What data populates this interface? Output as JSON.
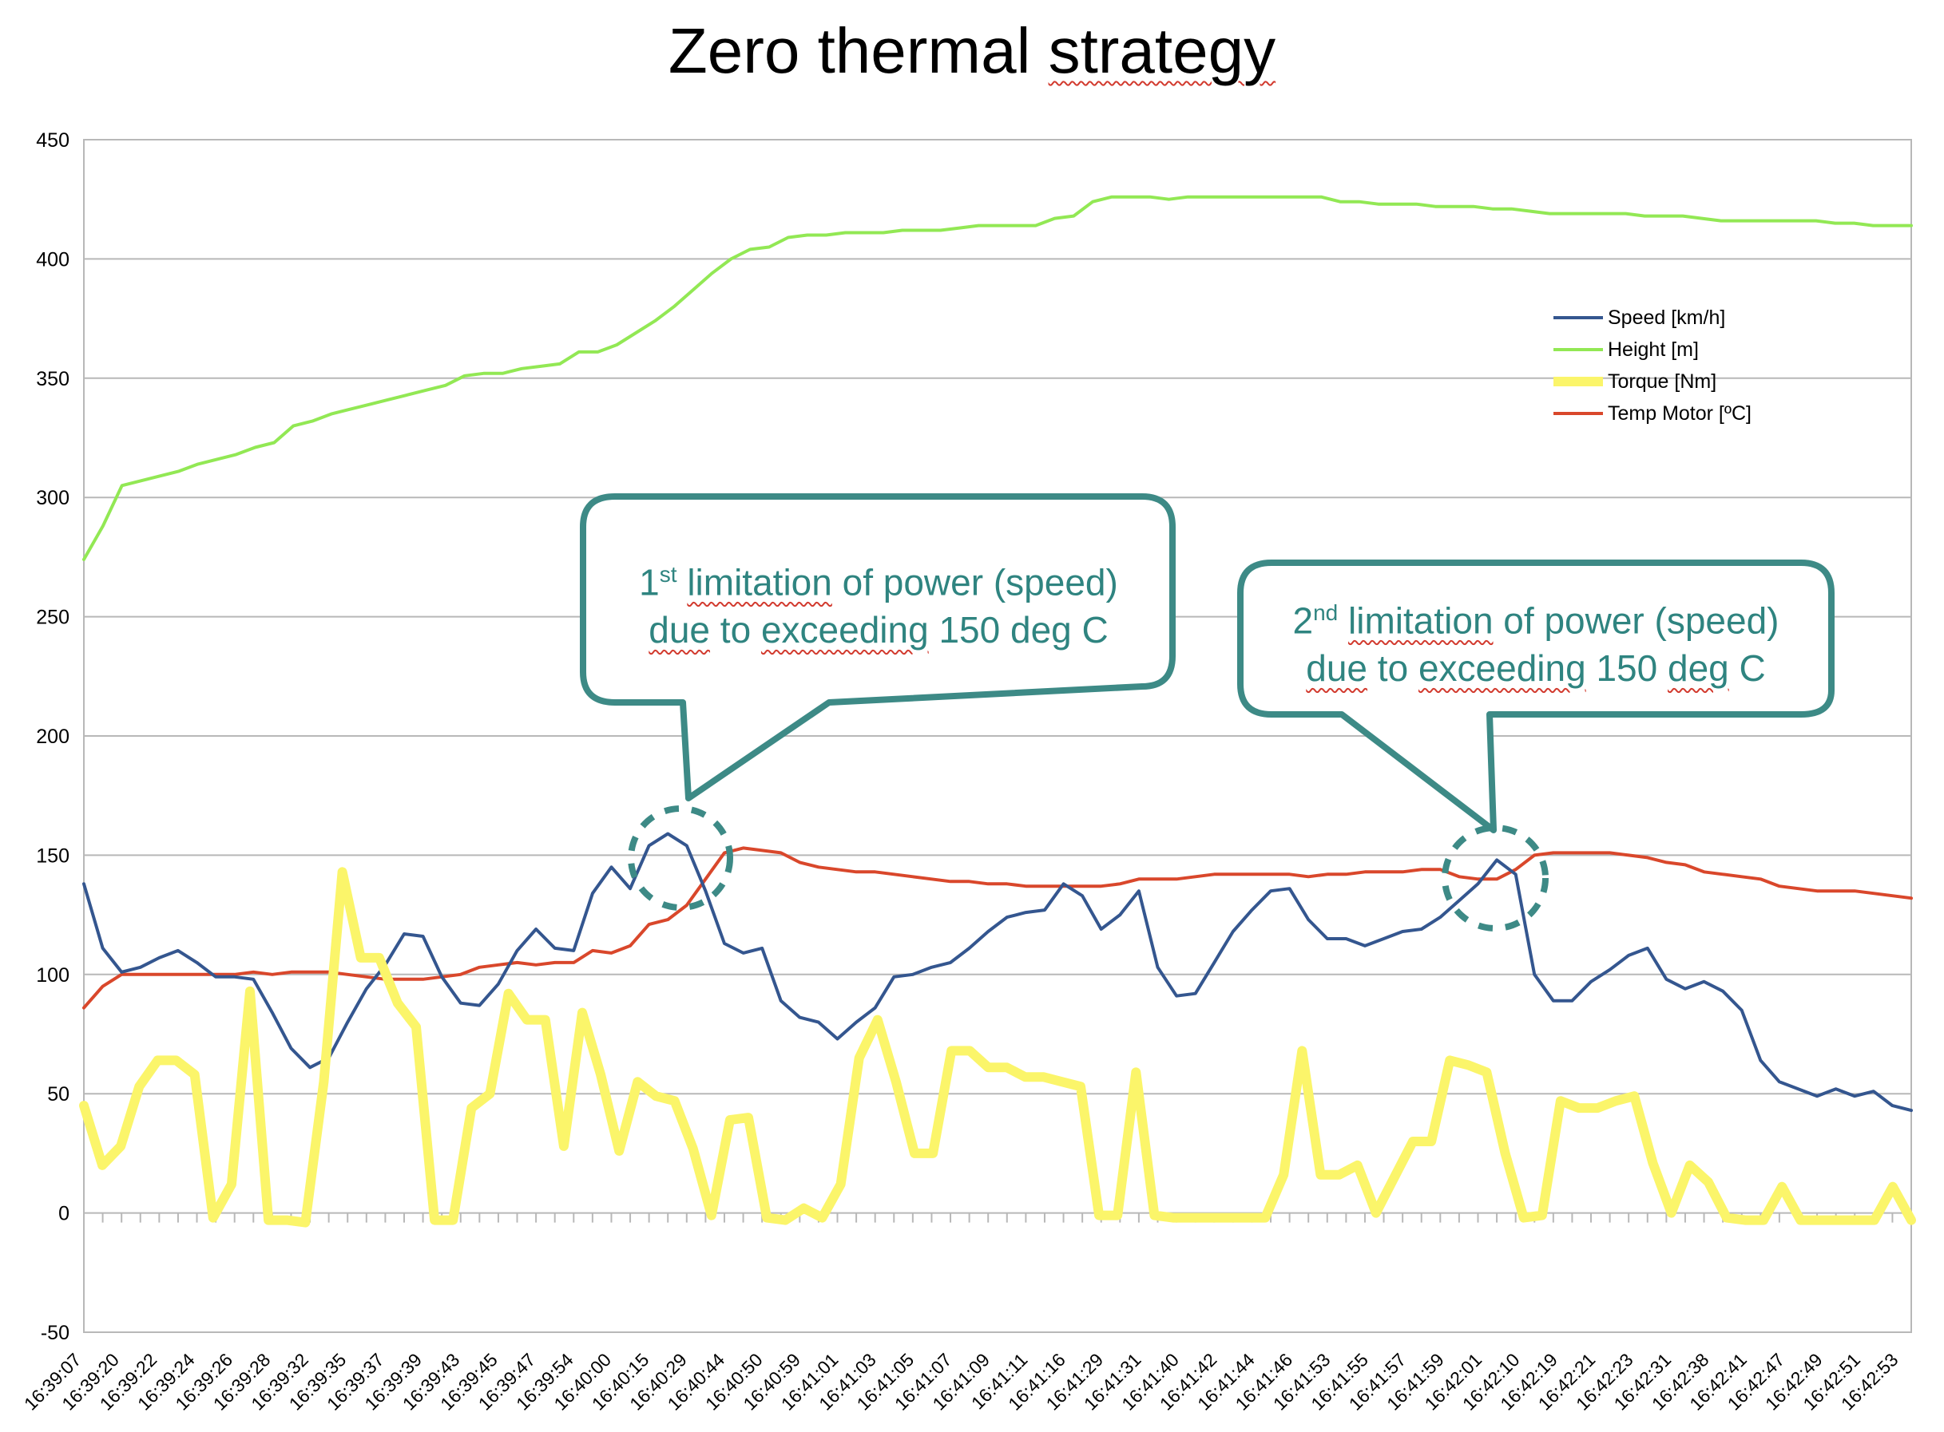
{
  "title_parts": [
    "Zero thermal ",
    "strategy"
  ],
  "chart_data": {
    "type": "line",
    "title": "Zero thermal strategy",
    "ylim": [
      -50,
      450
    ],
    "yticks": [
      -50,
      0,
      50,
      100,
      150,
      200,
      250,
      300,
      350,
      400,
      450
    ],
    "grid": true,
    "legend_position": "top-right",
    "x_tick_labels": [
      "16:39:07",
      "16:39:20",
      "16:39:22",
      "16:39:24",
      "16:39:26",
      "16:39:28",
      "16:39:32",
      "16:39:35",
      "16:39:37",
      "16:39:39",
      "16:39:43",
      "16:39:45",
      "16:39:47",
      "16:39:54",
      "16:40:00",
      "16:40:15",
      "16:40:29",
      "16:40:44",
      "16:40:50",
      "16:40:59",
      "16:41:01",
      "16:41:03",
      "16:41:05",
      "16:41:07",
      "16:41:09",
      "16:41:11",
      "16:41:16",
      "16:41:29",
      "16:41:31",
      "16:41:40",
      "16:41:42",
      "16:41:44",
      "16:41:46",
      "16:41:53",
      "16:41:55",
      "16:41:57",
      "16:41:59",
      "16:42:01",
      "16:42:10",
      "16:42:19",
      "16:42:21",
      "16:42:23",
      "16:42:31",
      "16:42:38",
      "16:42:41",
      "16:42:47",
      "16:42:49",
      "16:42:51",
      "16:42:53"
    ],
    "series": [
      {
        "name": "Speed [km/h]",
        "color": "#34568f",
        "width": 4,
        "values": [
          138,
          111,
          101,
          103,
          107,
          110,
          105,
          99,
          99,
          98,
          84,
          69,
          61,
          65,
          80,
          94,
          104,
          117,
          116,
          99,
          88,
          87,
          96,
          110,
          119,
          111,
          110,
          134,
          145,
          136,
          154,
          159,
          154,
          135,
          113,
          109,
          111,
          89,
          82,
          80,
          73,
          80,
          86,
          99,
          100,
          103,
          105,
          111,
          118,
          124,
          126,
          127,
          138,
          133,
          119,
          125,
          135,
          103,
          91,
          92,
          105,
          118,
          127,
          135,
          136,
          123,
          115,
          115,
          112,
          115,
          118,
          119,
          124,
          131,
          138,
          148,
          142,
          100,
          89,
          89,
          97,
          102,
          108,
          111,
          98,
          94,
          97,
          93,
          85,
          64,
          55,
          52,
          49,
          52,
          49,
          51,
          45,
          43
        ]
      },
      {
        "name": "Height  [m]",
        "color": "#92e854",
        "width": 4,
        "values": [
          274,
          288,
          305,
          307,
          309,
          311,
          314,
          316,
          318,
          321,
          323,
          330,
          332,
          335,
          337,
          339,
          341,
          343,
          345,
          347,
          351,
          352,
          352,
          354,
          355,
          356,
          361,
          361,
          364,
          369,
          374,
          380,
          387,
          394,
          400,
          404,
          405,
          409,
          410,
          410,
          411,
          411,
          411,
          412,
          412,
          412,
          413,
          414,
          414,
          414,
          414,
          417,
          418,
          424,
          426,
          426,
          426,
          425,
          426,
          426,
          426,
          426,
          426,
          426,
          426,
          426,
          424,
          424,
          423,
          423,
          423,
          422,
          422,
          422,
          421,
          421,
          420,
          419,
          419,
          419,
          419,
          419,
          418,
          418,
          418,
          417,
          416,
          416,
          416,
          416,
          416,
          416,
          415,
          415,
          414,
          414,
          414
        ]
      },
      {
        "name": "Torque  [Nm]",
        "color": "#fbf56a",
        "width": 12,
        "values": [
          45,
          20,
          28,
          53,
          64,
          64,
          58,
          -2,
          12,
          93,
          -3,
          -3,
          -4,
          55,
          143,
          107,
          107,
          88,
          78,
          -3,
          -3,
          44,
          50,
          92,
          81,
          81,
          28,
          84,
          58,
          26,
          55,
          49,
          47,
          27,
          -1,
          39,
          40,
          -2,
          -3,
          2,
          -2,
          12,
          65,
          81,
          55,
          25,
          25,
          68,
          68,
          61,
          61,
          57,
          57,
          55,
          53,
          -1,
          -1,
          59,
          -1,
          -2,
          -2,
          -2,
          -2,
          -2,
          -2,
          16,
          68,
          16,
          16,
          20,
          0,
          15,
          30,
          30,
          64,
          62,
          59,
          25,
          -2,
          -1,
          47,
          44,
          44,
          47,
          49,
          21,
          0,
          20,
          13,
          -2,
          -3,
          -3,
          11,
          -3,
          -3,
          -3,
          -3,
          -3,
          11,
          -3
        ]
      },
      {
        "name": "Temp Motor  [ºC]",
        "color": "#d9472b",
        "width": 4,
        "values": [
          86,
          95,
          100,
          100,
          100,
          100,
          100,
          100,
          100,
          101,
          100,
          101,
          101,
          101,
          100,
          99,
          98,
          98,
          98,
          99,
          100,
          103,
          104,
          105,
          104,
          105,
          105,
          110,
          109,
          112,
          121,
          123,
          129,
          140,
          151,
          153,
          152,
          151,
          147,
          145,
          144,
          143,
          143,
          142,
          141,
          140,
          139,
          139,
          138,
          138,
          137,
          137,
          137,
          137,
          137,
          138,
          140,
          140,
          140,
          141,
          142,
          142,
          142,
          142,
          142,
          141,
          142,
          142,
          143,
          143,
          143,
          144,
          144,
          141,
          140,
          140,
          144,
          150,
          151,
          151,
          151,
          151,
          150,
          149,
          147,
          146,
          143,
          142,
          141,
          140,
          137,
          136,
          135,
          135,
          135,
          134,
          133,
          132
        ]
      }
    ]
  },
  "callouts": [
    {
      "ordinal": "1",
      "suffix": "st",
      "word1": "limitation",
      "rest1": " of power (speed)",
      "word2": "due",
      "mid2": " to ",
      "word3": "exceeding",
      "rest2": " 150 deg C"
    },
    {
      "ordinal": "2",
      "suffix": "nd",
      "word1": "limitation",
      "rest1": " of power (speed)",
      "word2": "due",
      "mid2": " to ",
      "word3": "exceeding",
      "rest2": " 150 ",
      "word4": "deg",
      "rest3": " C"
    }
  ],
  "colors": {
    "callout": "#3d8a86",
    "grid": "#b8b8b8"
  }
}
